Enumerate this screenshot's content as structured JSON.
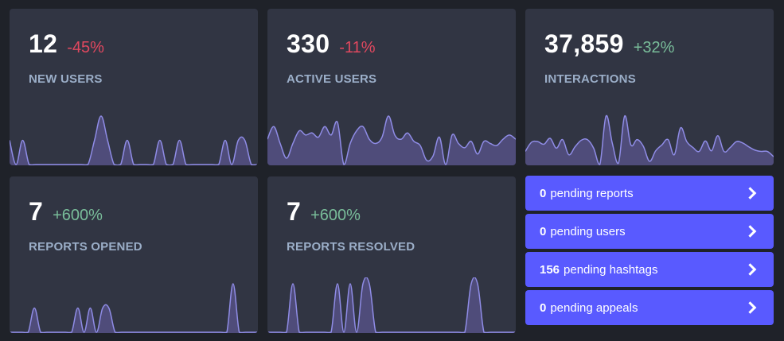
{
  "cards": [
    {
      "value": "12",
      "change": "-45%",
      "label": "NEW USERS",
      "trend": "neg"
    },
    {
      "value": "330",
      "change": "-11%",
      "label": "ACTIVE USERS",
      "trend": "neg"
    },
    {
      "value": "37,859",
      "change": "+32%",
      "label": "INTERACTIONS",
      "trend": "pos"
    },
    {
      "value": "7",
      "change": "+600%",
      "label": "REPORTS OPENED",
      "trend": "pos"
    },
    {
      "value": "7",
      "change": "+600%",
      "label": "REPORTS RESOLVED",
      "trend": "pos"
    }
  ],
  "pending": [
    {
      "count": "0",
      "text": "pending reports"
    },
    {
      "count": "0",
      "text": "pending users"
    },
    {
      "count": "156",
      "text": "pending hashtags"
    },
    {
      "count": "0",
      "text": "pending appeals"
    }
  ],
  "colors": {
    "background": "#1f2229",
    "card": "#313543",
    "negative": "#e0485f",
    "positive": "#79bd9a",
    "label": "#9baec8",
    "accent": "#595aff",
    "spark_stroke": "#8f8ce6",
    "spark_fill": "#4f4c7a"
  },
  "chart_data": [
    {
      "type": "area",
      "series": [
        {
          "values": [
            1,
            0,
            1,
            0,
            0,
            0,
            0,
            0,
            0,
            0,
            0,
            0,
            0,
            1,
            2,
            1,
            0,
            0,
            1,
            0,
            0,
            0,
            0,
            1,
            0,
            0,
            1,
            0,
            0,
            0,
            0,
            0,
            0,
            1,
            0,
            1,
            1,
            0,
            0
          ]
        }
      ]
    },
    {
      "type": "area",
      "series": [
        {
          "values": [
            14,
            20,
            12,
            5,
            12,
            18,
            16,
            17,
            15,
            20,
            16,
            22,
            2,
            12,
            18,
            20,
            14,
            12,
            15,
            25,
            16,
            14,
            17,
            13,
            11,
            4,
            6,
            15,
            2,
            16,
            12,
            10,
            13,
            7,
            13,
            12,
            11,
            14,
            16,
            14
          ]
        }
      ]
    },
    {
      "type": "area",
      "series": [
        {
          "values": [
            1000,
            1140,
            1150,
            1110,
            1200,
            1050,
            1180,
            950,
            1070,
            1170,
            1180,
            1050,
            800,
            1540,
            1130,
            820,
            1540,
            1100,
            1180,
            1080,
            850,
            1010,
            1100,
            1180,
            950,
            1360,
            1150,
            1060,
            1000,
            1160,
            1010,
            1240,
            1000,
            1060,
            1150,
            1130,
            1070,
            1020,
            1000,
            1000,
            920
          ]
        }
      ]
    },
    {
      "type": "area",
      "series": [
        {
          "values": [
            0,
            0,
            0,
            0,
            1,
            0,
            0,
            0,
            0,
            0,
            0,
            1,
            0,
            1,
            0,
            1,
            1,
            0,
            0,
            0,
            0,
            0,
            0,
            0,
            0,
            0,
            0,
            0,
            0,
            0,
            0,
            0,
            0,
            0,
            0,
            0,
            2,
            0,
            0,
            0,
            0
          ]
        }
      ]
    },
    {
      "type": "area",
      "series": [
        {
          "values": [
            0,
            0,
            0,
            0,
            1,
            0,
            0,
            0,
            0,
            0,
            0,
            1,
            0,
            1,
            0,
            1,
            1,
            0,
            0,
            0,
            0,
            0,
            0,
            0,
            0,
            0,
            0,
            0,
            0,
            0,
            0,
            0,
            1,
            1,
            0,
            0,
            0,
            0,
            0,
            0
          ]
        }
      ]
    }
  ]
}
